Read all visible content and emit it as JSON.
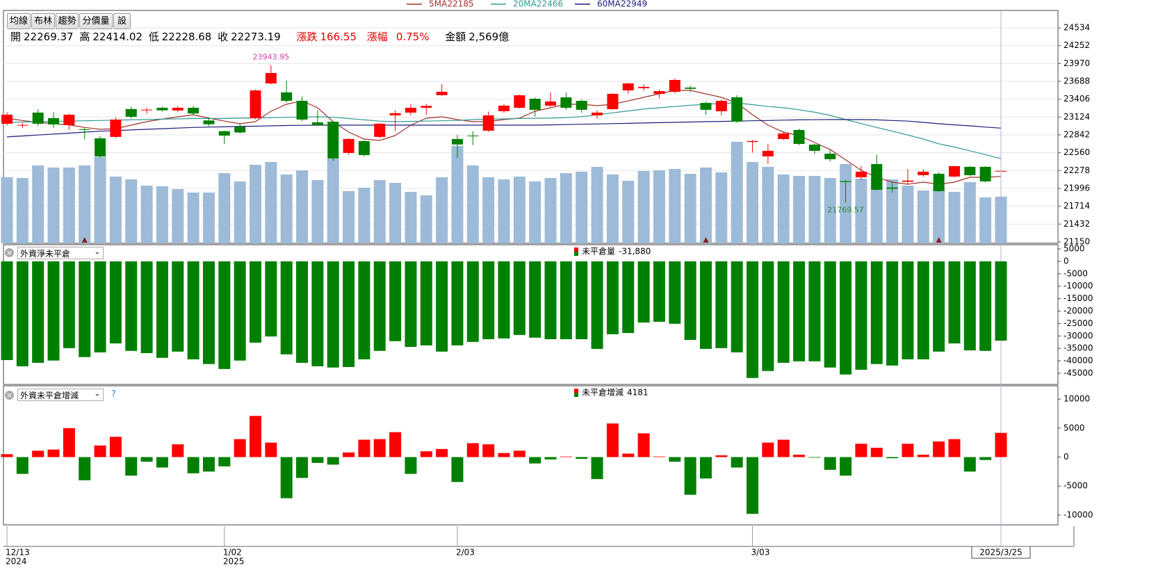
{
  "toolbar": [
    "均線",
    "布林",
    "趨勢",
    "分價量",
    "設"
  ],
  "info": {
    "open_label": "開",
    "high_label": "高",
    "low_label": "低",
    "close_label": "收",
    "change_label": "漲跌",
    "change": 166.55,
    "pct_label": "漲幅",
    "pct": {
      "value": 0.75,
      "label": "0.75%"
    },
    "amount_label": "金額",
    "amount": {
      "value": 2569,
      "label": "2,569億"
    }
  },
  "chart_data": [
    {
      "type": "candlestick",
      "up_color": "#ff0000",
      "down_color": "#008000",
      "ylim": [
        21128,
        24809
      ],
      "yticks": [
        24534,
        24252,
        23970,
        23688,
        23406,
        23124,
        22842,
        22560,
        22278,
        21996,
        21714,
        21432,
        21150
      ],
      "grid": true,
      "categories": [
        "12/13",
        null,
        null,
        null,
        null,
        null,
        null,
        null,
        null,
        null,
        null,
        null,
        null,
        null,
        "1/02",
        null,
        null,
        null,
        null,
        null,
        null,
        null,
        null,
        null,
        null,
        null,
        null,
        null,
        null,
        "2/03",
        null,
        null,
        null,
        null,
        null,
        null,
        null,
        null,
        null,
        null,
        null,
        null,
        null,
        null,
        null,
        null,
        null,
        null,
        "3/03",
        null,
        null,
        null,
        null,
        null,
        null,
        null,
        null,
        null,
        null,
        null,
        null,
        null,
        null,
        null,
        "2025/3/25"
      ],
      "years": [
        "2024",
        null,
        null,
        null,
        null,
        null,
        null,
        null,
        null,
        null,
        null,
        null,
        null,
        null,
        "2025",
        null,
        null,
        null,
        null,
        null,
        null,
        null,
        null,
        null,
        null,
        null,
        null,
        null,
        null,
        null,
        null,
        null,
        null,
        null,
        null,
        null,
        null,
        null,
        null,
        null,
        null,
        null,
        null,
        null,
        null,
        null,
        null,
        null,
        null,
        null,
        null,
        null,
        null,
        null,
        null,
        null,
        null,
        null,
        null,
        null,
        null,
        null,
        null,
        null,
        null
      ],
      "cursor": true,
      "open": [
        23018,
        22990,
        23194,
        23106,
        22996,
        22930,
        22787,
        22810,
        23250,
        23230,
        23270,
        23228,
        23270,
        23070,
        22900,
        22970,
        23106,
        23655,
        23513,
        23380,
        23040,
        23050,
        22557,
        22743,
        22810,
        23150,
        23194,
        23270,
        23470,
        22777,
        22830,
        22908,
        23216,
        23270,
        23413,
        23304,
        23435,
        23380,
        23150,
        23249,
        23545,
        23580,
        23490,
        23523,
        23590,
        23347,
        23216,
        23436,
        22730,
        22502,
        22776,
        22919,
        22688,
        22545,
        22110,
        22172,
        22381,
        22010,
        22100,
        22205,
        22227,
        22183,
        22337,
        22337,
        22269.37
      ],
      "high": [
        23200,
        23030,
        23250,
        23200,
        23180,
        22950,
        22820,
        23120,
        23290,
        23270,
        23290,
        23300,
        23300,
        23120,
        22910,
        23020,
        23560,
        23943.95,
        23700,
        23450,
        23230,
        23060,
        22790,
        22760,
        23030,
        23230,
        23330,
        23330,
        23640,
        22840,
        22900,
        23210,
        23330,
        23480,
        23430,
        23510,
        23510,
        23400,
        23230,
        23500,
        23665,
        23640,
        23560,
        23730,
        23620,
        23370,
        23400,
        23470,
        22760,
        22700,
        22900,
        22940,
        22700,
        22600,
        22130,
        22350,
        22530,
        22100,
        22300,
        22300,
        22250,
        22350,
        22350,
        22350,
        22414.02
      ],
      "low": [
        22990,
        22950,
        22980,
        22950,
        22920,
        22770,
        22480,
        22790,
        23100,
        23180,
        23210,
        23200,
        23150,
        22980,
        22700,
        22860,
        23090,
        23640,
        23350,
        23060,
        22980,
        22430,
        22530,
        22500,
        22790,
        22900,
        23150,
        23160,
        23460,
        22480,
        22680,
        22890,
        23190,
        23260,
        23130,
        23290,
        23240,
        23190,
        23100,
        23240,
        23490,
        23540,
        23420,
        23500,
        23520,
        23160,
        23150,
        23030,
        22560,
        22380,
        22760,
        22680,
        22540,
        22420,
        21769.57,
        22130,
        21960,
        21930,
        22060,
        22180,
        21940,
        22170,
        22190,
        22090,
        22228.68
      ],
      "close": [
        23161,
        23000,
        23018,
        23007,
        23161,
        22920,
        22500,
        23084,
        23128,
        23240,
        23230,
        23270,
        23180,
        23010,
        22830,
        22880,
        23545,
        23820,
        23380,
        23084,
        22996,
        22470,
        22777,
        22523,
        23018,
        23185,
        23270,
        23300,
        23523,
        22690,
        22820,
        23150,
        23304,
        23468,
        23238,
        23370,
        23270,
        23238,
        23194,
        23490,
        23655,
        23600,
        23534,
        23710,
        23570,
        23238,
        23380,
        23051,
        22745,
        22590,
        22864,
        22699,
        22590,
        22457,
        22095,
        22260,
        21975,
        21990,
        22120,
        22260,
        21953,
        22348,
        22205,
        22106.64,
        22273.19
      ],
      "label_extremes": {
        "max_color": "#d63ca8",
        "min_color": "#2e8b3a"
      },
      "ma": [
        {
          "name": "5MA",
          "color": "#a0302a",
          "values": [
            23106,
            23070,
            23040,
            23018,
            23000,
            22960,
            22930,
            22941,
            22996,
            23051,
            23090,
            23128,
            23161,
            23106,
            23060,
            23018,
            23051,
            23216,
            23326,
            23380,
            23271,
            23051,
            22886,
            22776,
            22754,
            22831,
            22996,
            23106,
            23128,
            23084,
            23051,
            23051,
            23084,
            23106,
            23216,
            23271,
            23326,
            23326,
            23304,
            23326,
            23380,
            23435,
            23490,
            23545,
            23545,
            23490,
            23435,
            23347,
            23161,
            22996,
            22886,
            22831,
            22721,
            22612,
            22447,
            22282,
            22172,
            22095,
            22062,
            22095,
            22062,
            22095,
            22172,
            22172,
            22185
          ]
        },
        {
          "name": "20MA",
          "color": "#2f9a94",
          "values": [
            23040,
            23045,
            23050,
            23055,
            23060,
            23065,
            23070,
            23075,
            23080,
            23084,
            23090,
            23095,
            23100,
            23100,
            23100,
            23106,
            23110,
            23115,
            23120,
            23125,
            23128,
            23120,
            23100,
            23080,
            23060,
            23051,
            23055,
            23060,
            23065,
            23070,
            23084,
            23090,
            23095,
            23100,
            23104,
            23106,
            23115,
            23130,
            23160,
            23190,
            23220,
            23250,
            23271,
            23290,
            23310,
            23326,
            23340,
            23347,
            23320,
            23290,
            23271,
            23240,
            23200,
            23150,
            23084,
            23020,
            22960,
            22900,
            22840,
            22776,
            22700,
            22650,
            22590,
            22530,
            22466
          ]
        },
        {
          "name": "60MA",
          "color": "#1c1c7a",
          "values": [
            22810,
            22825,
            22840,
            22855,
            22870,
            22885,
            22900,
            22910,
            22920,
            22930,
            22940,
            22950,
            22960,
            22965,
            22970,
            22975,
            22980,
            22985,
            22990,
            22993,
            22996,
            22996,
            22996,
            22996,
            22996,
            22996,
            22996,
            22996,
            22996,
            22996,
            22996,
            22996,
            22996,
            22996,
            22996,
            23000,
            23005,
            23010,
            23015,
            23020,
            23025,
            23030,
            23035,
            23040,
            23045,
            23051,
            23055,
            23060,
            23065,
            23070,
            23075,
            23080,
            23082,
            23084,
            23084,
            23084,
            23080,
            23070,
            23060,
            23040,
            23018,
            23000,
            22985,
            22965,
            22949
          ]
        }
      ],
      "volume": {
        "color": "#9dbbd8",
        "vlim": [
          0,
          12830
        ],
        "values": [
          3639,
          3600,
          4290,
          4175,
          4175,
          4290,
          4749,
          3677,
          3524,
          3179,
          3141,
          2987,
          2796,
          2796,
          3868,
          3409,
          4328,
          4481,
          3792,
          4022,
          3485,
          4673,
          2873,
          3064,
          3485,
          3332,
          2834,
          2643,
          3639,
          5362,
          4290,
          3639,
          3524,
          3677,
          3409,
          3600,
          3868,
          3945,
          4213,
          3792,
          3447,
          3983,
          4022,
          4098,
          3830,
          4175,
          3907,
          5592,
          4481,
          4213,
          3792,
          3715,
          3715,
          3600,
          4366,
          3562,
          3562,
          3524,
          3179,
          2911,
          3064,
          2834,
          3370,
          2528,
          2569
        ]
      },
      "signals": {
        "color": "#8b1a1a",
        "indices": [
          5,
          45,
          60
        ]
      }
    },
    {
      "type": "bar",
      "indicator": "外資淨未平倉",
      "color": "#008000",
      "legend": {
        "name": "未平倉量",
        "value_label": "-31,880"
      },
      "ylim": [
        -49500,
        6700
      ],
      "yticks": [
        5000,
        0,
        -5000,
        -10000,
        -15000,
        -20000,
        -25000,
        -30000,
        -35000,
        -40000,
        -45000
      ],
      "values": [
        -39700,
        -42200,
        -40800,
        -39900,
        -34900,
        -38500,
        -36600,
        -33000,
        -36000,
        -36900,
        -38800,
        -36300,
        -39400,
        -41300,
        -43300,
        -39900,
        -32700,
        -30200,
        -37400,
        -40800,
        -42200,
        -42700,
        -42500,
        -39400,
        -36000,
        -32100,
        -34400,
        -33800,
        -36300,
        -33800,
        -32400,
        -31300,
        -31000,
        -29600,
        -30700,
        -31300,
        -31300,
        -31300,
        -35200,
        -29300,
        -28800,
        -24600,
        -24300,
        -25100,
        -31600,
        -35200,
        -34900,
        -36600,
        -46900,
        -44100,
        -40800,
        -40200,
        -40200,
        -42700,
        -45500,
        -43600,
        -41300,
        -41900,
        -39400,
        -39400,
        -36300,
        -33000,
        -35800,
        -36000,
        -31880
      ]
    },
    {
      "type": "bar",
      "indicator": "外資未平倉增減",
      "help": "?",
      "up_color": "#ff0000",
      "down_color": "#008000",
      "legend": {
        "name": "未平倉增減"
      },
      "ylim": [
        -11700,
        12300
      ],
      "yticks": [
        10000,
        5000,
        0,
        -5000,
        -10000
      ],
      "values": [
        500,
        -2900,
        1100,
        1300,
        5000,
        -4000,
        2000,
        3500,
        -3200,
        -800,
        -1800,
        2200,
        -2800,
        -2500,
        -1600,
        3100,
        7100,
        2500,
        -7100,
        -3600,
        -1000,
        -1300,
        800,
        3000,
        3100,
        4300,
        -2900,
        1000,
        1400,
        -4300,
        2400,
        2200,
        700,
        1100,
        -1100,
        -400,
        100,
        -300,
        -3800,
        5800,
        600,
        4100,
        100,
        -800,
        -6500,
        -3700,
        300,
        -1800,
        -9800,
        2500,
        3000,
        400,
        -100,
        -2200,
        -3200,
        2300,
        1600,
        -200,
        2300,
        400,
        2700,
        3100,
        -2500,
        -500,
        4181
      ]
    }
  ]
}
